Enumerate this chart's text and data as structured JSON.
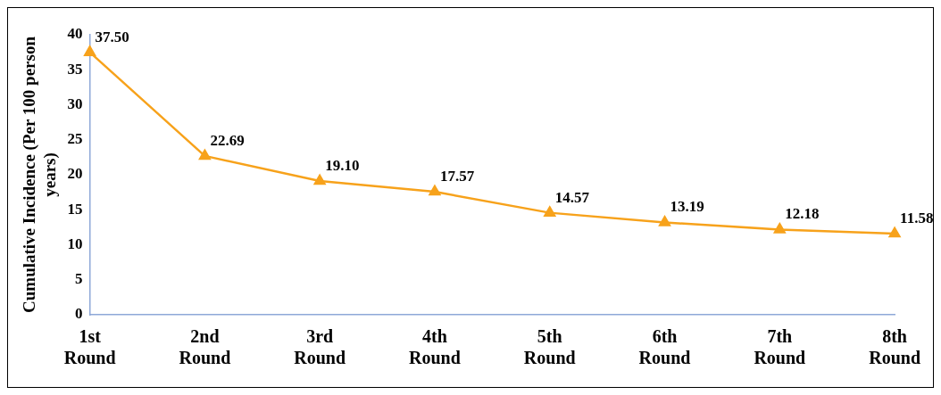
{
  "chart_data": {
    "type": "line",
    "ylabel": "Cumulative Incidence (Per 100 person years)",
    "categories": [
      "1st Round",
      "2nd Round",
      "3rd Round",
      "4th Round",
      "5th Round",
      "6th Round",
      "7th Round",
      "8th Round"
    ],
    "series": [
      {
        "color": "#f7a21b",
        "values": [
          37.5,
          22.69,
          19.1,
          17.57,
          14.57,
          13.19,
          12.18,
          11.58
        ],
        "value_labels": [
          "37.50",
          "22.69",
          "19.10",
          "17.57",
          "14.57",
          "13.19",
          "12.18",
          "11.58"
        ]
      }
    ],
    "ylim": [
      0,
      40
    ],
    "yticks": [
      0,
      5,
      10,
      15,
      20,
      25,
      30,
      35,
      40
    ],
    "grid": false,
    "legend": false,
    "marker": "triangle",
    "line_style": "solid"
  }
}
